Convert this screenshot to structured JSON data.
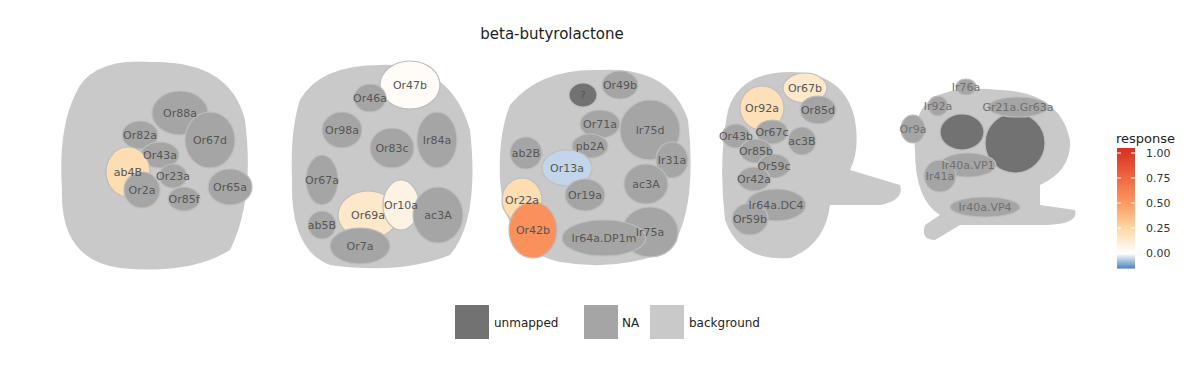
{
  "chart_data": {
    "type": "glomerulus_map",
    "title": "beta-butyrolactone",
    "panels": [
      {
        "glomeruli": [
          {
            "label": "Or88a",
            "status": "NA",
            "response": null
          },
          {
            "label": "Or82a",
            "status": "NA",
            "response": null
          },
          {
            "label": "Or67d",
            "status": "NA",
            "response": null
          },
          {
            "label": "Or43a",
            "status": "NA",
            "response": null
          },
          {
            "label": "ab4B",
            "status": "response",
            "response": 0.22
          },
          {
            "label": "Or2a",
            "status": "NA",
            "response": null
          },
          {
            "label": "Or23a",
            "status": "NA",
            "response": null
          },
          {
            "label": "Or85f",
            "status": "NA",
            "response": null
          },
          {
            "label": "Or65a",
            "status": "NA",
            "response": null
          }
        ]
      },
      {
        "glomeruli": [
          {
            "label": "Or47b",
            "status": "response",
            "response": 0.02
          },
          {
            "label": "Or46a",
            "status": "NA",
            "response": null
          },
          {
            "label": "Or98a",
            "status": "NA",
            "response": null
          },
          {
            "label": "Or83c",
            "status": "NA",
            "response": null
          },
          {
            "label": "Ir84a",
            "status": "NA",
            "response": null
          },
          {
            "label": "Or67a",
            "status": "NA",
            "response": null
          },
          {
            "label": "Or69a",
            "status": "response",
            "response": 0.15
          },
          {
            "label": "Or10a",
            "status": "response",
            "response": 0.08
          },
          {
            "label": "ac3A",
            "status": "NA",
            "response": null
          },
          {
            "label": "ab5B",
            "status": "NA",
            "response": null
          },
          {
            "label": "Or7a",
            "status": "NA",
            "response": null
          }
        ]
      },
      {
        "glomeruli": [
          {
            "label": "?",
            "status": "unmapped",
            "response": null
          },
          {
            "label": "Or49b",
            "status": "NA",
            "response": null
          },
          {
            "label": "Or71a",
            "status": "NA",
            "response": null
          },
          {
            "label": "Ir75d",
            "status": "NA",
            "response": null
          },
          {
            "label": "ab2B",
            "status": "NA",
            "response": null
          },
          {
            "label": "pb2A",
            "status": "NA",
            "response": null
          },
          {
            "label": "Or13a",
            "status": "response",
            "response": -0.05
          },
          {
            "label": "Ir31a",
            "status": "NA",
            "response": null
          },
          {
            "label": "ac3A",
            "status": "NA",
            "response": null
          },
          {
            "label": "Or19a",
            "status": "NA",
            "response": null
          },
          {
            "label": "Or22a",
            "status": "response",
            "response": 0.22
          },
          {
            "label": "Ir75a",
            "status": "NA",
            "response": null
          },
          {
            "label": "Or42b",
            "status": "response",
            "response": 0.55
          },
          {
            "label": "Ir64a.DP1m",
            "status": "NA",
            "response": null
          }
        ]
      },
      {
        "glomeruli": [
          {
            "label": "Or92a",
            "status": "response",
            "response": 0.2
          },
          {
            "label": "Or67b",
            "status": "response",
            "response": 0.15
          },
          {
            "label": "Or85d",
            "status": "NA",
            "response": null
          },
          {
            "label": "Or43b",
            "status": "NA",
            "response": null
          },
          {
            "label": "Or67c",
            "status": "NA",
            "response": null
          },
          {
            "label": "Or85b",
            "status": "NA",
            "response": null
          },
          {
            "label": "ac3B",
            "status": "NA",
            "response": null
          },
          {
            "label": "Or59c",
            "status": "NA",
            "response": null
          },
          {
            "label": "Or42a",
            "status": "NA",
            "response": null
          },
          {
            "label": "Ir64a.DC4",
            "status": "NA",
            "response": null
          },
          {
            "label": "Or59b",
            "status": "NA",
            "response": null
          }
        ]
      },
      {
        "glomeruli": [
          {
            "label": null,
            "status": "unmapped",
            "response": null
          },
          {
            "label": null,
            "status": "unmapped",
            "response": null
          },
          {
            "label": "Ir76a",
            "status": "NA",
            "response": null
          },
          {
            "label": "Ir92a",
            "status": "NA",
            "response": null
          },
          {
            "label": "Or9a",
            "status": "NA",
            "response": null
          },
          {
            "label": "Gr21a.Gr63a",
            "status": "NA",
            "response": null
          },
          {
            "label": "Ir40a.VP1",
            "status": "NA",
            "response": null
          },
          {
            "label": "Ir41a",
            "status": "NA",
            "response": null
          },
          {
            "label": "Ir40a.VP4",
            "status": "NA",
            "response": null
          }
        ]
      }
    ],
    "legend": "bottom",
    "legend_entries": [
      {
        "status": "unmapped",
        "label": "unmapped"
      },
      {
        "status": "NA",
        "label": "NA"
      },
      {
        "status": "background",
        "label": "background"
      }
    ],
    "colorbar": {
      "title": "response",
      "range": [
        -0.15,
        1.05
      ],
      "ticks": [
        {
          "value": 0,
          "label": "0.00"
        },
        {
          "value": 0.25,
          "label": "0.25"
        },
        {
          "value": 0.5,
          "label": "0.50"
        },
        {
          "value": 0.75,
          "label": "0.75"
        },
        {
          "value": 1,
          "label": "1.00"
        }
      ]
    }
  }
}
